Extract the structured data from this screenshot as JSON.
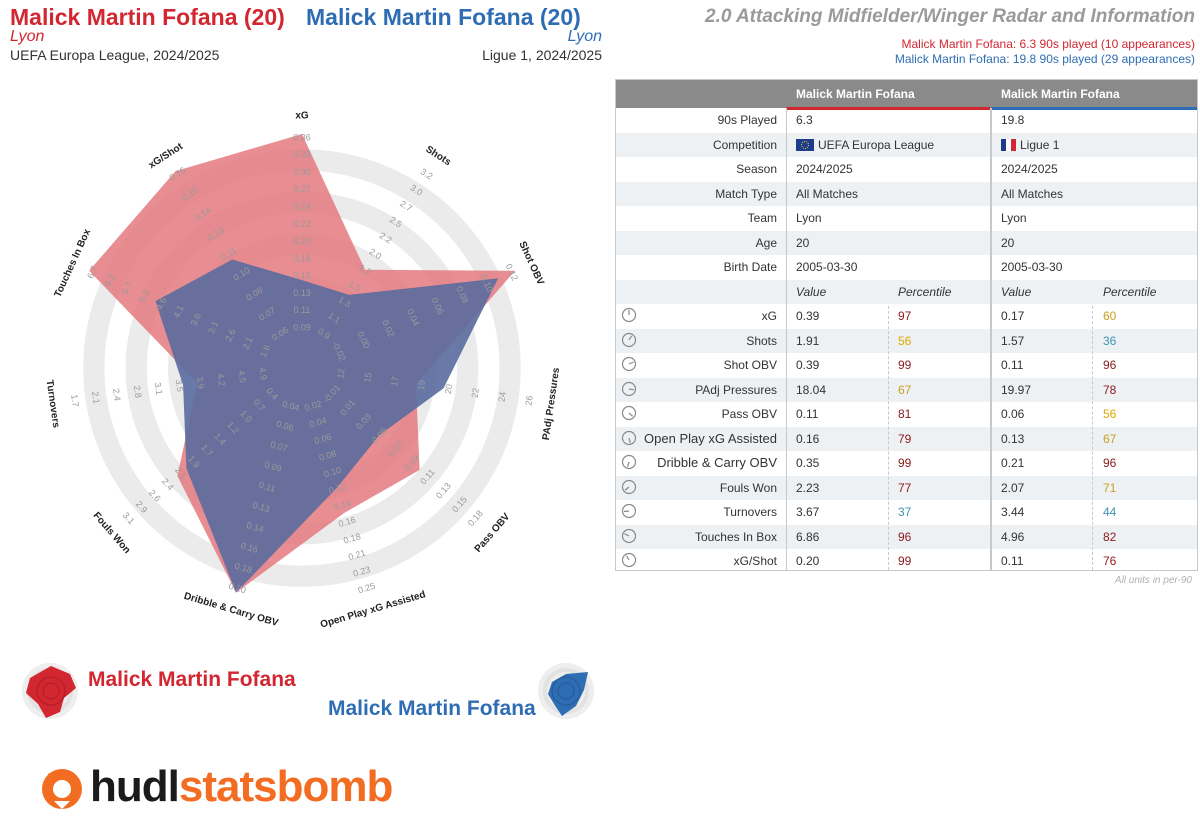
{
  "header": {
    "player1_title": "Malick Martin Fofana (20)",
    "player2_title": "Malick Martin Fofana (20)",
    "player1_team": "Lyon",
    "player2_team": "Lyon",
    "player1_comp": "UEFA Europa League, 2024/2025",
    "player2_comp": "Ligue 1, 2024/2025",
    "radar_title": "2.0 Attacking Midfielder/Winger Radar and Information",
    "summary1": "Malick Martin Fofana: 6.3 90s played (10 appearances)",
    "summary2": "Malick Martin Fofana: 19.8 90s played (29 appearances)"
  },
  "colors": {
    "player1": "#d22630",
    "player2": "#2e6db4",
    "fill1": "#e4797f",
    "fill2": "#5a6b9e",
    "ring": "#ebebeb"
  },
  "legend": {
    "player1": "Malick Martin Fofana",
    "player2": "Malick Martin Fofana"
  },
  "logo": {
    "part1": "hudl",
    "part2": "statsbomb"
  },
  "table": {
    "col1_header": "Malick Martin Fofana",
    "col2_header": "Malick Martin Fofana",
    "info_rows": [
      {
        "label": "90s Played",
        "v1": "6.3",
        "v2": "19.8"
      },
      {
        "label": "Competition",
        "v1": "UEFA Europa League",
        "v2": "Ligue 1",
        "flag1": "eu",
        "flag2": "fr"
      },
      {
        "label": "Season",
        "v1": "2024/2025",
        "v2": "2024/2025"
      },
      {
        "label": "Match Type",
        "v1": "All Matches",
        "v2": "All Matches"
      },
      {
        "label": "Team",
        "v1": "Lyon",
        "v2": "Lyon"
      },
      {
        "label": "Age",
        "v1": "20",
        "v2": "20"
      },
      {
        "label": "Birth Date",
        "v1": "2005-03-30",
        "v2": "2005-03-30"
      }
    ],
    "sub_value": "Value",
    "sub_percentile": "Percentile",
    "metric_rows": [
      {
        "label": "xG",
        "v1": "0.39",
        "p1": "97",
        "v2": "0.17",
        "p2": "60"
      },
      {
        "label": "Shots",
        "v1": "1.91",
        "p1": "56",
        "v2": "1.57",
        "p2": "36"
      },
      {
        "label": "Shot OBV",
        "v1": "0.39",
        "p1": "99",
        "v2": "0.11",
        "p2": "96"
      },
      {
        "label": "PAdj Pressures",
        "v1": "18.04",
        "p1": "67",
        "v2": "19.97",
        "p2": "78"
      },
      {
        "label": "Pass OBV",
        "v1": "0.11",
        "p1": "81",
        "v2": "0.06",
        "p2": "56"
      },
      {
        "label": "Open Play xG Assisted",
        "v1": "0.16",
        "p1": "79",
        "v2": "0.13",
        "p2": "67"
      },
      {
        "label": "Dribble & Carry OBV",
        "v1": "0.35",
        "p1": "99",
        "v2": "0.21",
        "p2": "96"
      },
      {
        "label": "Fouls Won",
        "v1": "2.23",
        "p1": "77",
        "v2": "2.07",
        "p2": "71"
      },
      {
        "label": "Turnovers",
        "v1": "3.67",
        "p1": "37",
        "v2": "3.44",
        "p2": "44"
      },
      {
        "label": "Touches In Box",
        "v1": "6.86",
        "p1": "96",
        "v2": "4.96",
        "p2": "82"
      },
      {
        "label": "xG/Shot",
        "v1": "0.20",
        "p1": "99",
        "v2": "0.11",
        "p2": "76"
      }
    ],
    "units_note": "All units in per-90"
  },
  "chart_data": {
    "type": "radar",
    "title": "2.0 Attacking Midfielder/Winger Radar and Information",
    "axes": [
      {
        "label": "xG",
        "min": 0.09,
        "max": 0.36,
        "ticks": [
          "0.09",
          "0.11",
          "0.13",
          "0.15",
          "0.18",
          "0.20",
          "0.22",
          "0.24",
          "0.27",
          "0.30",
          "0.33",
          "0.36"
        ]
      },
      {
        "label": "Shots",
        "min": 0.9,
        "max": 3.2,
        "ticks": [
          "0.9",
          "1.1",
          "1.3",
          "1.5",
          "1.7",
          "2.0",
          "2.2",
          "2.5",
          "2.7",
          "3.0",
          "3.2"
        ]
      },
      {
        "label": "Shot OBV",
        "min": -0.02,
        "max": 0.12,
        "ticks": [
          "-0.02",
          "0.00",
          "0.02",
          "0.04",
          "0.06",
          "0.08",
          "0.10",
          "0.12"
        ]
      },
      {
        "label": "PAdj Pressures",
        "min": 12,
        "max": 26,
        "ticks": [
          "12",
          "15",
          "17",
          "19",
          "20",
          "22",
          "24",
          "26"
        ]
      },
      {
        "label": "Pass OBV",
        "min": -0.01,
        "max": 0.18,
        "ticks": [
          "-0.01",
          "0.01",
          "0.03",
          "0.05",
          "0.07",
          "0.09",
          "0.11",
          "0.13",
          "0.15",
          "0.18"
        ]
      },
      {
        "label": "Open Play xG Assisted",
        "min": 0.02,
        "max": 0.25,
        "ticks": [
          "0.02",
          "0.04",
          "0.06",
          "0.08",
          "0.10",
          "0.12",
          "0.14",
          "0.16",
          "0.18",
          "0.21",
          "0.23",
          "0.25"
        ]
      },
      {
        "label": "Dribble & Carry OBV",
        "min": 0.04,
        "max": 0.2,
        "ticks": [
          "0.04",
          "0.06",
          "0.07",
          "0.09",
          "0.11",
          "0.13",
          "0.14",
          "0.16",
          "0.18",
          "0.20"
        ]
      },
      {
        "label": "Fouls Won",
        "min": 0.4,
        "max": 3.1,
        "ticks": [
          "0.4",
          "0.7",
          "1.0",
          "1.2",
          "1.4",
          "1.7",
          "1.9",
          "2.1",
          "2.4",
          "2.6",
          "2.9",
          "3.1"
        ]
      },
      {
        "label": "Turnovers",
        "min": 4.9,
        "max": 1.7,
        "ticks": [
          "4.9",
          "4.5",
          "4.2",
          "3.9",
          "3.5",
          "3.1",
          "2.8",
          "2.4",
          "2.1",
          "1.7"
        ]
      },
      {
        "label": "Touches In Box",
        "min": 1.6,
        "max": 6.7,
        "ticks": [
          "1.6",
          "2.1",
          "2.6",
          "3.1",
          "3.6",
          "4.1",
          "4.6",
          "5.2",
          "5.7",
          "6.2",
          "6.7"
        ]
      },
      {
        "label": "xG/Shot",
        "min": 0.06,
        "max": 0.16,
        "ticks": [
          "0.06",
          "0.07",
          "0.08",
          "0.10",
          "0.11",
          "0.13",
          "0.14",
          "0.15",
          "0.16"
        ]
      }
    ],
    "series": [
      {
        "name": "Malick Martin Fofana",
        "values": [
          0.39,
          1.91,
          0.39,
          18.04,
          0.11,
          0.16,
          0.35,
          2.23,
          3.67,
          6.86,
          0.2
        ]
      },
      {
        "name": "Malick Martin Fofana",
        "values": [
          0.17,
          1.57,
          0.11,
          19.97,
          0.06,
          0.13,
          0.21,
          2.07,
          3.44,
          4.96,
          0.11
        ]
      }
    ]
  }
}
